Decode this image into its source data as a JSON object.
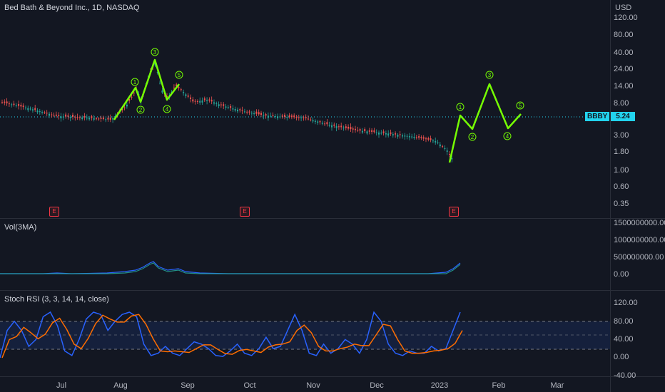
{
  "header": {
    "title": "Bed Bath & Beyond Inc., 1D, NASDAQ",
    "currency": "USD"
  },
  "price": {
    "ticker": "BBBY",
    "last": "5.24"
  },
  "price_axis": [
    "120.00",
    "80.00",
    "40.00",
    "24.00",
    "14.00",
    "8.00",
    "3.00",
    "1.80",
    "1.00",
    "0.60",
    "0.35"
  ],
  "volume_pane": {
    "label": "Vol(3MA)",
    "axis": [
      "1500000000.00",
      "1000000000.00",
      "500000000.00",
      "0.00"
    ]
  },
  "rsi_pane": {
    "label": "Stoch RSI (3, 3, 14, 14, close)",
    "axis": [
      "120.00",
      "80.00",
      "40.00",
      "0.00",
      "-40.00"
    ]
  },
  "time_axis": [
    "Jul",
    "Aug",
    "Sep",
    "Oct",
    "Nov",
    "Dec",
    "2023",
    "Feb",
    "Mar"
  ],
  "earnings_markers": [
    "E",
    "E",
    "E"
  ],
  "wave_labels_1": [
    "1",
    "2",
    "3",
    "4",
    "5"
  ],
  "wave_labels_2": [
    "1",
    "2",
    "3",
    "4",
    "5"
  ],
  "colors": {
    "wave": "#76ff03",
    "up": "#26a69a",
    "down": "#ef5350",
    "k": "#2962ff",
    "d": "#ff6d00",
    "price": "#22d3ee"
  }
}
